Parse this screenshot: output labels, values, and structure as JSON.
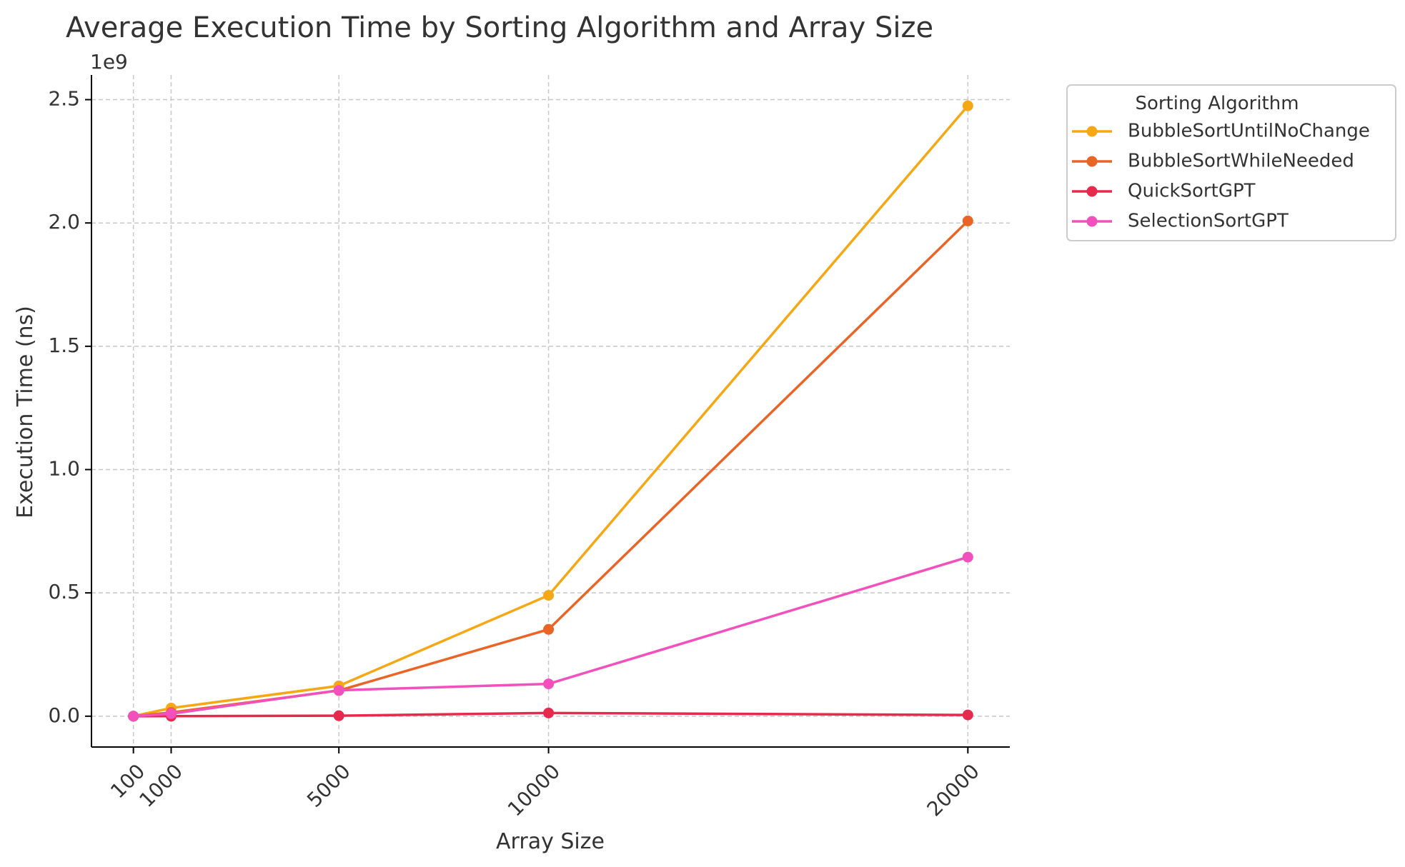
{
  "chart_data": {
    "type": "line",
    "title": "Average Execution Time by Sorting Algorithm and Array Size",
    "xlabel": "Array Size",
    "ylabel": "Execution Time (ns)",
    "y_offset_label": "1e9",
    "x": [
      100,
      1000,
      5000,
      10000,
      20000
    ],
    "x_tick_labels": [
      "100",
      "1000",
      "5000",
      "10000",
      "20000"
    ],
    "y_ticks": [
      0.0,
      0.5,
      1.0,
      1.5,
      2.0,
      2.5
    ],
    "y_tick_labels": [
      "0.0",
      "0.5",
      "1.0",
      "1.5",
      "2.0",
      "2.5"
    ],
    "xlim": [
      -900,
      21000
    ],
    "ylim": [
      -0.125,
      2.6
    ],
    "grid": true,
    "legend": {
      "title": "Sorting Algorithm",
      "placement": "outside-top-right"
    },
    "series": [
      {
        "name": "BubbleSortUntilNoChange",
        "color": "#f5a814",
        "values": [
          0.0002,
          0.033,
          0.123,
          0.49,
          2.475
        ]
      },
      {
        "name": "BubbleSortWhileNeeded",
        "color": "#ea6426",
        "values": [
          0.0002,
          0.015,
          0.104,
          0.352,
          2.008
        ]
      },
      {
        "name": "QuickSortGPT",
        "color": "#e8294e",
        "values": [
          0.0,
          0.0002,
          0.002,
          0.013,
          0.005
        ]
      },
      {
        "name": "SelectionSortGPT",
        "color": "#f250bc",
        "values": [
          0.0001,
          0.01,
          0.105,
          0.131,
          0.645
        ]
      }
    ]
  }
}
